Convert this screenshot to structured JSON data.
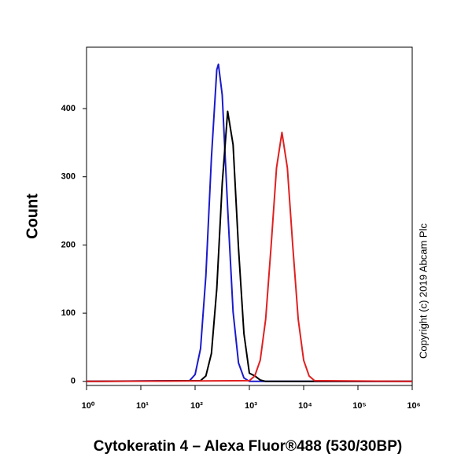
{
  "chart_data": {
    "type": "line",
    "ylabel": "Count",
    "xlabel": "Cytokeratin 4 – Alexa Fluor®488 (530/30BP)",
    "annotation": "Copyright (c) 2019 Abcam Plc",
    "xscale": "log",
    "xlim": [
      1,
      1000000
    ],
    "xticks": [
      {
        "value": 1,
        "label": "10⁰"
      },
      {
        "value": 10,
        "label": "10¹"
      },
      {
        "value": 100,
        "label": "10²"
      },
      {
        "value": 1000,
        "label": "10³"
      },
      {
        "value": 10000,
        "label": "10⁴"
      },
      {
        "value": 100000,
        "label": "10⁵"
      },
      {
        "value": 1000000,
        "label": "10⁶"
      }
    ],
    "ylim": [
      -6,
      490
    ],
    "yticks": [
      0,
      100,
      200,
      300,
      400
    ],
    "series": [
      {
        "color": "#1a1acc",
        "x": [
          1,
          79,
          100,
          126,
          158,
          200,
          251,
          269,
          316,
          398,
          501,
          631,
          794,
          1000,
          1000000
        ],
        "values": [
          0,
          1,
          10,
          48,
          155,
          328,
          457,
          465,
          420,
          254,
          102,
          27,
          5,
          0,
          0
        ]
      },
      {
        "color": "#000000",
        "x": [
          1,
          126,
          158,
          200,
          251,
          316,
          398,
          501,
          631,
          794,
          1000,
          1259,
          1585,
          1995,
          1000000
        ],
        "values": [
          0,
          1,
          8,
          41,
          136,
          290,
          396,
          347,
          195,
          70,
          12,
          8,
          2,
          0,
          0
        ]
      },
      {
        "color": "#e02020",
        "x": [
          1,
          1000,
          1259,
          1585,
          1995,
          2512,
          3162,
          3981,
          5012,
          6310,
          7943,
          10000,
          12589,
          15849,
          1000000
        ],
        "values": [
          0,
          1,
          8,
          31,
          91,
          198,
          313,
          365,
          313,
          198,
          91,
          31,
          8,
          1,
          0
        ]
      }
    ]
  }
}
